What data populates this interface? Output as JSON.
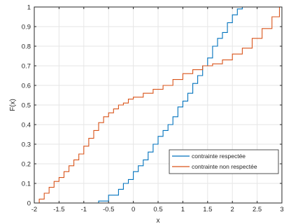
{
  "chart_data": {
    "type": "line",
    "xlabel": "x",
    "ylabel": "F(x)",
    "xlim": [
      -2,
      3
    ],
    "ylim": [
      0,
      1
    ],
    "x_ticks": [
      "-2",
      "-1.5",
      "-1",
      "-0.5",
      "0",
      "0.5",
      "1",
      "1.5",
      "2",
      "2.5",
      "3"
    ],
    "y_ticks": [
      "0",
      "0.1",
      "0.2",
      "0.3",
      "0.4",
      "0.5",
      "0.6",
      "0.7",
      "0.8",
      "0.9",
      "1"
    ],
    "grid": true,
    "legend_position": "bottom-right",
    "series": [
      {
        "name": "contrainte respectée",
        "color": "#0072BD",
        "x": [
          -0.85,
          -0.7,
          -0.5,
          -0.3,
          -0.2,
          -0.1,
          0.0,
          0.1,
          0.2,
          0.3,
          0.4,
          0.5,
          0.6,
          0.7,
          0.8,
          0.9,
          1.0,
          1.1,
          1.2,
          1.3,
          1.4,
          1.5,
          1.6,
          1.7,
          1.8,
          1.9,
          2.0,
          2.1,
          2.2
        ],
        "y": [
          0.0,
          0.01,
          0.04,
          0.07,
          0.1,
          0.12,
          0.16,
          0.19,
          0.22,
          0.26,
          0.3,
          0.34,
          0.37,
          0.4,
          0.44,
          0.49,
          0.52,
          0.56,
          0.61,
          0.65,
          0.7,
          0.74,
          0.8,
          0.84,
          0.87,
          0.92,
          0.96,
          0.99,
          1.0
        ]
      },
      {
        "name": "contrainte non respectée",
        "color": "#D95319",
        "x": [
          -2.0,
          -1.9,
          -1.8,
          -1.7,
          -1.6,
          -1.5,
          -1.4,
          -1.3,
          -1.2,
          -1.1,
          -1.0,
          -0.9,
          -0.8,
          -0.7,
          -0.6,
          -0.5,
          -0.4,
          -0.3,
          -0.2,
          -0.1,
          0.0,
          0.2,
          0.4,
          0.6,
          0.8,
          1.0,
          1.2,
          1.4,
          1.6,
          1.8,
          2.0,
          2.2,
          2.4,
          2.6,
          2.8,
          2.95
        ],
        "y": [
          0.0,
          0.02,
          0.05,
          0.08,
          0.11,
          0.13,
          0.16,
          0.19,
          0.22,
          0.25,
          0.29,
          0.33,
          0.37,
          0.41,
          0.44,
          0.46,
          0.48,
          0.5,
          0.51,
          0.53,
          0.54,
          0.56,
          0.58,
          0.6,
          0.63,
          0.66,
          0.68,
          0.7,
          0.71,
          0.73,
          0.76,
          0.79,
          0.84,
          0.89,
          0.95,
          1.0
        ]
      }
    ]
  }
}
